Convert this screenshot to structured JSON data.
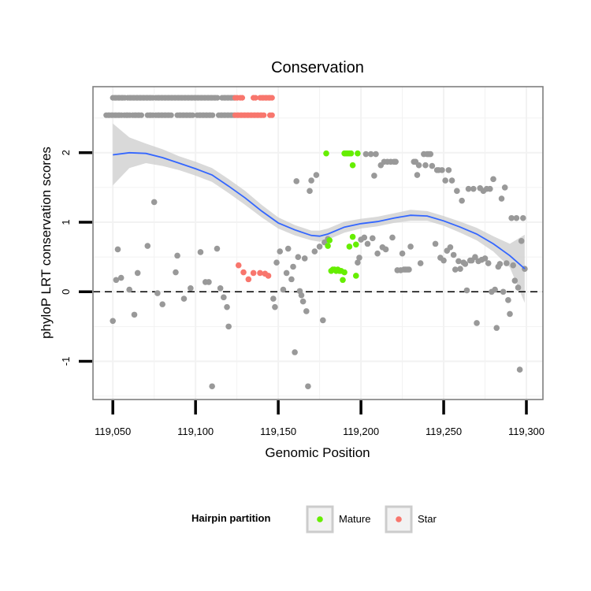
{
  "chart_data": {
    "type": "scatter",
    "title": "Conservation",
    "xlabel": "Genomic Position",
    "ylabel": "phyloP LRT conservation scores",
    "xlim": [
      119038,
      119310
    ],
    "ylim": [
      -1.55,
      2.95
    ],
    "x_ticks": [
      119050,
      119100,
      119150,
      119200,
      119250,
      119300
    ],
    "x_tick_labels": [
      "119,050",
      "119,100",
      "119,150",
      "119,200",
      "119,250",
      "119,300"
    ],
    "y_ticks": [
      -1,
      0,
      1,
      2
    ],
    "y_tick_labels": [
      "-1",
      "0",
      "1",
      "2"
    ],
    "reference_line": {
      "y": 0,
      "style": "dashed"
    },
    "colors": {
      "Other": "#999999",
      "Mature": "#66ee00",
      "Star": "#f8766d",
      "smooth": "#3366ff",
      "ribbon": "#cccccc"
    },
    "legend": {
      "title": "Hairpin partition",
      "position": "bottom",
      "entries": [
        {
          "label": "Mature",
          "color": "#66ee00"
        },
        {
          "label": "Star",
          "color": "#f8766d"
        }
      ]
    },
    "series": [
      {
        "name": "Other",
        "color": "#999999",
        "points": [
          [
            119050,
            -0.42
          ],
          [
            119052,
            0.17
          ],
          [
            119053,
            0.61
          ],
          [
            119055,
            0.2
          ],
          [
            119060,
            0.03
          ],
          [
            119063,
            -0.33
          ],
          [
            119065,
            0.27
          ],
          [
            119071,
            0.66
          ],
          [
            119075,
            1.29
          ],
          [
            119077,
            -0.02
          ],
          [
            119080,
            -0.18
          ],
          [
            119088,
            0.28
          ],
          [
            119089,
            0.52
          ],
          [
            119093,
            -0.1
          ],
          [
            119097,
            0.05
          ],
          [
            119103,
            0.57
          ],
          [
            119106,
            0.14
          ],
          [
            119108,
            0.14
          ],
          [
            119110,
            -1.36
          ],
          [
            119113,
            0.62
          ],
          [
            119115,
            0.05
          ],
          [
            119117,
            -0.08
          ],
          [
            119119,
            -0.22
          ],
          [
            119120,
            -0.5
          ],
          [
            119147,
            -0.1
          ],
          [
            119148,
            -0.22
          ],
          [
            119149,
            0.42
          ],
          [
            119151,
            0.58
          ],
          [
            119153,
            0.03
          ],
          [
            119155,
            0.27
          ],
          [
            119156,
            0.62
          ],
          [
            119158,
            0.18
          ],
          [
            119159,
            0.36
          ],
          [
            119160,
            -0.87
          ],
          [
            119161,
            1.59
          ],
          [
            119162,
            0.5
          ],
          [
            119163,
            0.01
          ],
          [
            119164,
            -0.05
          ],
          [
            119165,
            -0.14
          ],
          [
            119166,
            0.48
          ],
          [
            119167,
            -0.28
          ],
          [
            119168,
            -1.36
          ],
          [
            119169,
            1.45
          ],
          [
            119170,
            1.6
          ],
          [
            119172,
            0.58
          ],
          [
            119173,
            1.68
          ],
          [
            119175,
            0.65
          ],
          [
            119177,
            -0.41
          ],
          [
            119178,
            0.71
          ],
          [
            119180,
            0.76
          ],
          [
            119198,
            0.42
          ],
          [
            119199,
            0.49
          ],
          [
            119200,
            0.75
          ],
          [
            119202,
            0.78
          ],
          [
            119203,
            1.98
          ],
          [
            119204,
            0.69
          ],
          [
            119206,
            1.98
          ],
          [
            119207,
            0.77
          ],
          [
            119208,
            1.67
          ],
          [
            119209,
            1.98
          ],
          [
            119210,
            0.55
          ],
          [
            119212,
            1.82
          ],
          [
            119213,
            0.64
          ],
          [
            119214,
            1.87
          ],
          [
            119215,
            0.61
          ],
          [
            119216,
            1.87
          ],
          [
            119218,
            1.87
          ],
          [
            119219,
            0.78
          ],
          [
            119220,
            1.87
          ],
          [
            119221,
            1.87
          ],
          [
            119222,
            0.31
          ],
          [
            119224,
            0.31
          ],
          [
            119225,
            0.55
          ],
          [
            119226,
            0.32
          ],
          [
            119227,
            0.32
          ],
          [
            119228,
            0.32
          ],
          [
            119229,
            0.32
          ],
          [
            119230,
            0.65
          ],
          [
            119232,
            1.87
          ],
          [
            119233,
            1.87
          ],
          [
            119234,
            1.68
          ],
          [
            119235,
            1.82
          ],
          [
            119236,
            0.41
          ],
          [
            119238,
            1.98
          ],
          [
            119239,
            1.82
          ],
          [
            119240,
            1.98
          ],
          [
            119241,
            1.98
          ],
          [
            119242,
            1.98
          ],
          [
            119243,
            1.81
          ],
          [
            119245,
            0.69
          ],
          [
            119246,
            1.75
          ],
          [
            119247,
            1.75
          ],
          [
            119248,
            0.49
          ],
          [
            119249,
            1.75
          ],
          [
            119250,
            0.45
          ],
          [
            119251,
            1.6
          ],
          [
            119252,
            0.59
          ],
          [
            119253,
            1.75
          ],
          [
            119254,
            0.64
          ],
          [
            119255,
            1.6
          ],
          [
            119256,
            0.53
          ],
          [
            119257,
            0.32
          ],
          [
            119258,
            1.45
          ],
          [
            119259,
            0.44
          ],
          [
            119260,
            0.33
          ],
          [
            119261,
            1.31
          ],
          [
            119262,
            0.42
          ],
          [
            119263,
            0.4
          ],
          [
            119264,
            0.02
          ],
          [
            119265,
            1.48
          ],
          [
            119266,
            0.45
          ],
          [
            119267,
            0.45
          ],
          [
            119268,
            1.48
          ],
          [
            119269,
            0.5
          ],
          [
            119270,
            -0.45
          ],
          [
            119271,
            0.44
          ],
          [
            119272,
            1.49
          ],
          [
            119273,
            0.46
          ],
          [
            119274,
            1.45
          ],
          [
            119275,
            0.48
          ],
          [
            119276,
            1.48
          ],
          [
            119277,
            0.41
          ],
          [
            119278,
            1.48
          ],
          [
            119279,
            0.0
          ],
          [
            119280,
            1.62
          ],
          [
            119281,
            0.03
          ],
          [
            119282,
            -0.52
          ],
          [
            119283,
            0.36
          ],
          [
            119284,
            0.4
          ],
          [
            119285,
            1.34
          ],
          [
            119286,
            0.0
          ],
          [
            119287,
            1.5
          ],
          [
            119288,
            0.41
          ],
          [
            119289,
            -0.12
          ],
          [
            119290,
            -0.32
          ],
          [
            119291,
            1.06
          ],
          [
            119292,
            0.38
          ],
          [
            119293,
            0.16
          ],
          [
            119294,
            1.06
          ],
          [
            119295,
            0.06
          ],
          [
            119296,
            -1.12
          ],
          [
            119297,
            0.73
          ],
          [
            119298,
            1.06
          ],
          [
            119299,
            0.33
          ]
        ]
      },
      {
        "name": "Mature",
        "color": "#66ee00",
        "points": [
          [
            119179,
            1.99
          ],
          [
            119180,
            0.66
          ],
          [
            119181,
            0.74
          ],
          [
            119182,
            0.3
          ],
          [
            119183,
            0.32
          ],
          [
            119184,
            0.32
          ],
          [
            119185,
            0.3
          ],
          [
            119186,
            0.32
          ],
          [
            119187,
            0.3
          ],
          [
            119188,
            0.3
          ],
          [
            119189,
            0.17
          ],
          [
            119190,
            0.28
          ],
          [
            119190,
            1.99
          ],
          [
            119191,
            1.99
          ],
          [
            119192,
            1.99
          ],
          [
            119193,
            0.65
          ],
          [
            119193,
            1.99
          ],
          [
            119194,
            1.99
          ],
          [
            119195,
            0.79
          ],
          [
            119195,
            1.82
          ],
          [
            119197,
            0.68
          ],
          [
            119197,
            0.23
          ],
          [
            119198,
            1.99
          ]
        ]
      },
      {
        "name": "Star",
        "color": "#f8766d",
        "points": [
          [
            119126,
            0.38
          ],
          [
            119129,
            0.28
          ],
          [
            119132,
            0.18
          ],
          [
            119135,
            0.27
          ],
          [
            119139,
            0.27
          ],
          [
            119142,
            0.26
          ],
          [
            119144,
            0.23
          ]
        ]
      }
    ],
    "rug": {
      "color_default": "#999999",
      "rows": [
        {
          "y": 2.79,
          "x": [
            119050,
            119052,
            119054,
            119056,
            119059,
            119061,
            119063,
            119065,
            119067,
            119069,
            119071,
            119073,
            119076,
            119078,
            119080,
            119082,
            119084,
            119086,
            119088,
            119090,
            119092,
            119094,
            119096,
            119098,
            119100,
            119102,
            119104,
            119106,
            119108,
            119110,
            119112,
            119116,
            119118,
            119120,
            119122,
            119124,
            119127,
            119135,
            119139,
            119141,
            119143,
            119145
          ]
        },
        {
          "y": 2.54,
          "x": [
            119046,
            119048,
            119050,
            119052,
            119054,
            119057,
            119059,
            119062,
            119064,
            119066,
            119071,
            119073,
            119076,
            119078,
            119080,
            119082,
            119084,
            119089,
            119091,
            119093,
            119095,
            119097,
            119101,
            119103,
            119105,
            119107,
            119109,
            119114,
            119116,
            119118,
            119120,
            119122,
            119124,
            119126,
            119128,
            119130,
            119132,
            119134,
            119136,
            119138,
            119140,
            119145
          ]
        }
      ],
      "star_ranges": [
        [
          119124,
          119127
        ],
        [
          119135,
          119145
        ],
        [
          119126,
          119139
        ],
        [
          119145,
          119145
        ]
      ]
    },
    "smooth": {
      "method": "loess",
      "x": [
        119050,
        119060,
        119070,
        119080,
        119090,
        119100,
        119110,
        119120,
        119130,
        119140,
        119150,
        119160,
        119170,
        119175,
        119180,
        119190,
        119200,
        119210,
        119220,
        119230,
        119240,
        119250,
        119260,
        119270,
        119280,
        119290,
        119299
      ],
      "y": [
        1.97,
        2.0,
        1.99,
        1.93,
        1.85,
        1.77,
        1.68,
        1.52,
        1.35,
        1.16,
        0.99,
        0.89,
        0.81,
        0.8,
        0.83,
        0.93,
        0.98,
        1.01,
        1.06,
        1.1,
        1.09,
        1.02,
        0.93,
        0.83,
        0.69,
        0.52,
        0.33
      ],
      "lower": [
        1.53,
        1.78,
        1.85,
        1.81,
        1.75,
        1.67,
        1.58,
        1.42,
        1.25,
        1.07,
        0.91,
        0.81,
        0.74,
        0.72,
        0.75,
        0.85,
        0.91,
        0.94,
        0.99,
        1.02,
        1.02,
        0.95,
        0.85,
        0.74,
        0.58,
        0.35,
        -0.16
      ],
      "upper": [
        2.42,
        2.22,
        2.13,
        2.05,
        1.95,
        1.87,
        1.78,
        1.62,
        1.45,
        1.25,
        1.07,
        0.96,
        0.88,
        0.88,
        0.91,
        1.01,
        1.05,
        1.08,
        1.13,
        1.18,
        1.16,
        1.09,
        1.01,
        0.92,
        0.8,
        0.69,
        0.82
      ]
    }
  }
}
